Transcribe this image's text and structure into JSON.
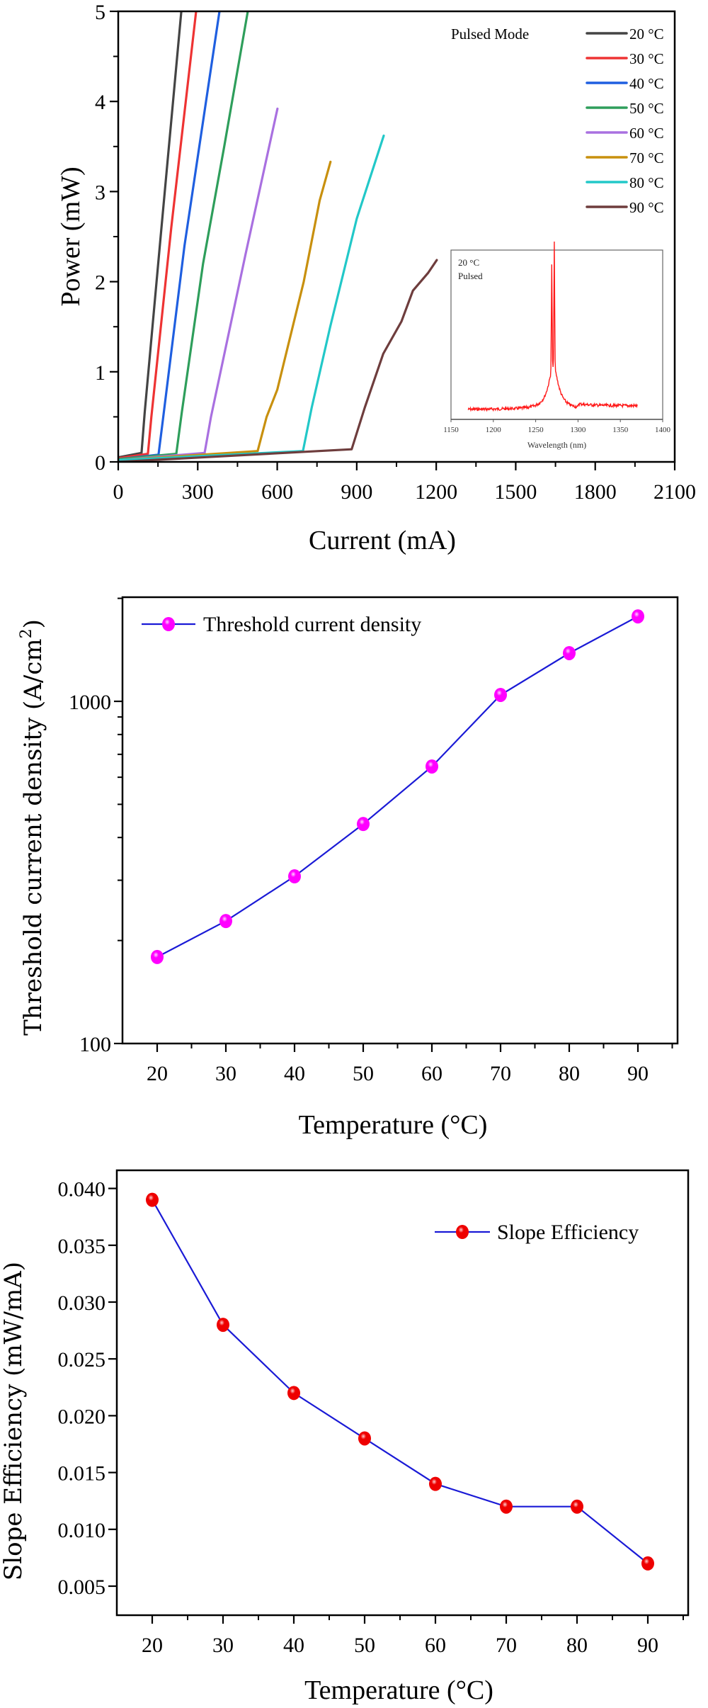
{
  "chart_data": [
    {
      "id": "power-current",
      "type": "line",
      "title": "",
      "xlabel": "Current (mA)",
      "ylabel": "Power (mW)",
      "xlim": [
        0,
        2100
      ],
      "ylim": [
        0,
        5
      ],
      "xticks": [
        0,
        300,
        600,
        900,
        1200,
        1500,
        1800,
        2100
      ],
      "yticks": [
        0,
        1,
        2,
        3,
        4,
        5
      ],
      "grid": false,
      "legend_position": "top-right",
      "annotation": "Pulsed Mode",
      "series": [
        {
          "name": "20 °C",
          "color": "#444444",
          "points": [
            [
              0,
              0.05
            ],
            [
              88,
              0.1
            ],
            [
              100,
              0.55
            ],
            [
              160,
              2.5
            ],
            [
              238,
              5.0
            ]
          ]
        },
        {
          "name": "30 °C",
          "color": "#ee3333",
          "points": [
            [
              0,
              0.04
            ],
            [
              112,
              0.09
            ],
            [
              125,
              0.5
            ],
            [
              200,
              2.6
            ],
            [
              294,
              5.0
            ]
          ]
        },
        {
          "name": "40 °C",
          "color": "#1f5fe0",
          "points": [
            [
              0,
              0.03
            ],
            [
              152,
              0.08
            ],
            [
              170,
              0.5
            ],
            [
              250,
              2.4
            ],
            [
              382,
              5.0
            ]
          ]
        },
        {
          "name": "50 °C",
          "color": "#2e9e5b",
          "points": [
            [
              0,
              0.03
            ],
            [
              219,
              0.09
            ],
            [
              240,
              0.55
            ],
            [
              320,
              2.2
            ],
            [
              400,
              3.5
            ],
            [
              489,
              5.0
            ]
          ]
        },
        {
          "name": "60 °C",
          "color": "#a970e0",
          "points": [
            [
              0,
              0.02
            ],
            [
              326,
              0.1
            ],
            [
              350,
              0.5
            ],
            [
              480,
              2.3
            ],
            [
              601,
              3.92
            ]
          ]
        },
        {
          "name": "70 °C",
          "color": "#c8900e",
          "points": [
            [
              0,
              0.02
            ],
            [
              526,
              0.12
            ],
            [
              560,
              0.5
            ],
            [
              600,
              0.8
            ],
            [
              700,
              2.0
            ],
            [
              760,
              2.9
            ],
            [
              801,
              3.33
            ]
          ]
        },
        {
          "name": "80 °C",
          "color": "#22c8c8",
          "points": [
            [
              0,
              0.02
            ],
            [
              697,
              0.12
            ],
            [
              730,
              0.6
            ],
            [
              800,
              1.5
            ],
            [
              900,
              2.7
            ],
            [
              1002,
              3.62
            ]
          ]
        },
        {
          "name": "90 °C",
          "color": "#6e3d3d",
          "points": [
            [
              0,
              0.0
            ],
            [
              881,
              0.14
            ],
            [
              930,
              0.6
            ],
            [
              1000,
              1.2
            ],
            [
              1069,
              1.56
            ],
            [
              1112,
              1.9
            ],
            [
              1170,
              2.1
            ],
            [
              1202,
              2.24
            ]
          ]
        }
      ],
      "inset": {
        "type": "line",
        "xlabel": "Wavelength (nm)",
        "xlim": [
          1150,
          1400
        ],
        "xticks": [
          1150,
          1200,
          1250,
          1300,
          1350,
          1400
        ],
        "notes": [
          "20 °C",
          "Pulsed"
        ],
        "color": "#ff1a1a",
        "peak_wavelengths_nm": [
          1269,
          1272
        ],
        "span_nm": [
          1170,
          1370
        ]
      }
    },
    {
      "id": "threshold-density",
      "type": "line",
      "title": "",
      "xlabel": "Temperature (°C)",
      "ylabel": "Threshold current density (A/cm",
      "ylabel_sup": "2",
      "ylabel_end": ")",
      "yscale": "log",
      "xlim": [
        15,
        95
      ],
      "ylim": [
        100,
        2000
      ],
      "xticks": [
        20,
        30,
        40,
        50,
        60,
        70,
        80,
        90
      ],
      "yticks": [
        100,
        1000
      ],
      "grid": false,
      "legend_position": "top-left",
      "series": [
        {
          "name": "Threshold current density",
          "line_color": "#1a1ad6",
          "marker_color": "#ff00ff",
          "x": [
            20,
            30,
            40,
            50,
            60,
            70,
            80,
            90
          ],
          "y": [
            179,
            228,
            308,
            438,
            645,
            1044,
            1383,
            1771
          ]
        }
      ]
    },
    {
      "id": "slope-efficiency",
      "type": "line",
      "title": "",
      "xlabel": "Temperature (°C)",
      "ylabel": "Slope Efficiency (mW/mA)",
      "xlim": [
        15,
        95
      ],
      "ylim": [
        0.0025,
        0.0416
      ],
      "xticks": [
        20,
        30,
        40,
        50,
        60,
        70,
        80,
        90
      ],
      "yticks": [
        "0.005",
        "0.010",
        "0.015",
        "0.020",
        "0.025",
        "0.030",
        "0.035",
        "0.040"
      ],
      "grid": false,
      "legend_position": "top-right",
      "series": [
        {
          "name": "Slope Efficiency",
          "line_color": "#1a1ad6",
          "marker_color": "#ee0000",
          "x": [
            20,
            30,
            40,
            50,
            60,
            70,
            80,
            90
          ],
          "y": [
            0.039,
            0.028,
            0.022,
            0.018,
            0.014,
            0.012,
            0.012,
            0.007
          ]
        }
      ]
    }
  ]
}
